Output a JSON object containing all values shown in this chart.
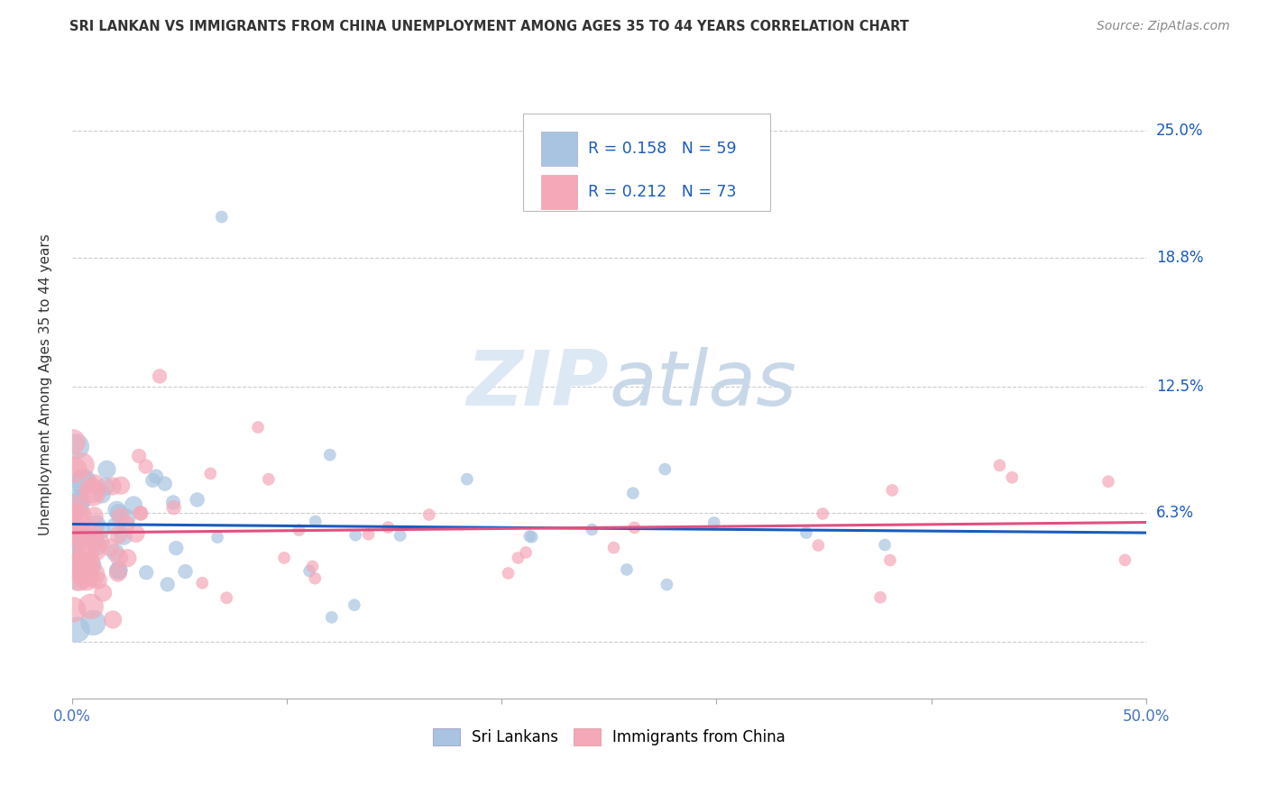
{
  "title": "SRI LANKAN VS IMMIGRANTS FROM CHINA UNEMPLOYMENT AMONG AGES 35 TO 44 YEARS CORRELATION CHART",
  "source": "Source: ZipAtlas.com",
  "ylabel": "Unemployment Among Ages 35 to 44 years",
  "xlim": [
    0.0,
    0.5
  ],
  "ylim": [
    -0.028,
    0.28
  ],
  "yticks": [
    0.0,
    0.063,
    0.125,
    0.188,
    0.25
  ],
  "ytick_labels": [
    "",
    "6.3%",
    "12.5%",
    "18.8%",
    "25.0%"
  ],
  "background_color": "#ffffff",
  "grid_color": "#cccccc",
  "sri_lankan_color": "#a8c4e0",
  "china_color": "#f4a8b8",
  "sri_lankan_line_color": "#1a5bbf",
  "china_line_color": "#e05080",
  "R_sri": 0.158,
  "N_sri": 59,
  "R_china": 0.212,
  "N_china": 73,
  "legend_label_color": "#4472c4",
  "legend_N_color": "#2ecc71"
}
